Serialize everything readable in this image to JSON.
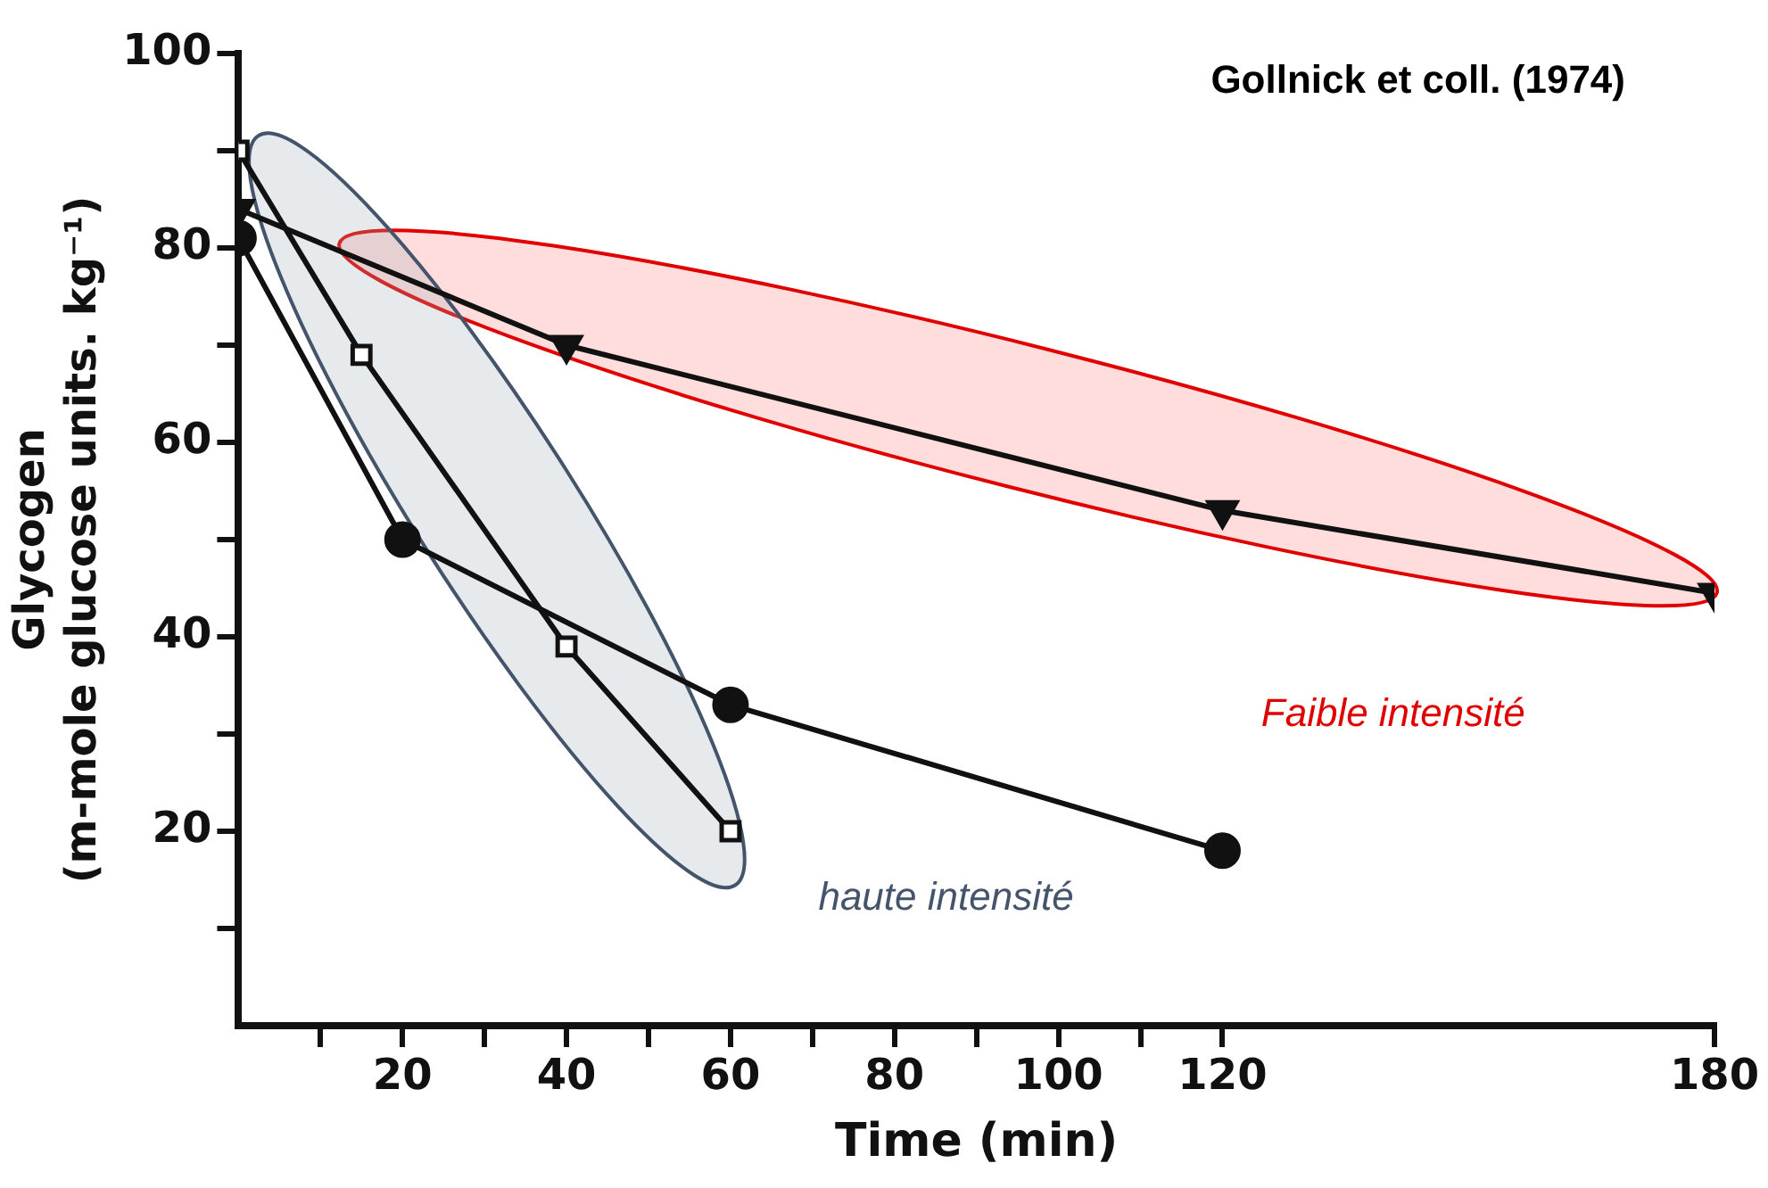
{
  "chart_data": {
    "type": "line",
    "title": "Gollnick et coll. (1974)",
    "xlabel": "Time (min)",
    "ylabel": [
      "Glycogen",
      "(m-mole glucose units. kg⁻¹)"
    ],
    "xlim": [
      0,
      180
    ],
    "xticks": [
      {
        "value": 10,
        "label": null
      },
      20,
      {
        "value": 30,
        "label": null
      },
      40,
      {
        "value": 50,
        "label": null
      },
      60,
      {
        "value": 70,
        "label": null
      },
      80,
      {
        "value": 90,
        "label": null
      },
      100,
      {
        "value": 110,
        "label": null
      },
      120,
      180
    ],
    "ylim": [
      0,
      100
    ],
    "yticks": [
      {
        "value": 10,
        "label": null
      },
      20,
      {
        "value": 30,
        "label": null
      },
      40,
      {
        "value": 50,
        "label": null
      },
      60,
      {
        "value": 70,
        "label": null
      },
      80,
      {
        "value": 90,
        "label": null
      },
      100
    ],
    "series": [
      {
        "color": "#111111",
        "marker": "triangle",
        "x": [
          0,
          40,
          120,
          180
        ],
        "values": [
          84,
          70,
          53,
          44.5
        ]
      },
      {
        "color": "#111111",
        "marker": "circle",
        "x": [
          0,
          20,
          60,
          120
        ],
        "values": [
          81,
          50,
          33,
          18
        ]
      },
      {
        "color": "#111111",
        "marker": "square",
        "x": [
          0,
          15,
          40,
          60
        ],
        "values": [
          90,
          69,
          39,
          20
        ]
      }
    ],
    "annotations": [
      "Faible intensité",
      "haute intensité"
    ],
    "grid": false,
    "legend": false
  }
}
